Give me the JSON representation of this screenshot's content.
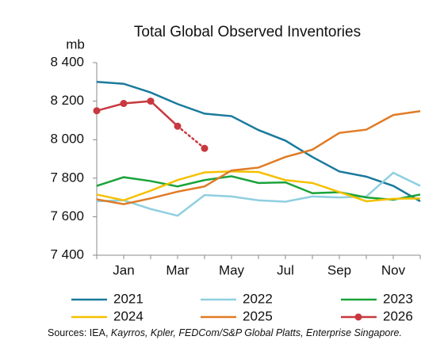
{
  "chart_data": {
    "type": "line",
    "title": "Total Global Observed Inventories",
    "y_label": "mb",
    "categories": [
      null,
      "Jan",
      null,
      "Mar",
      null,
      "May",
      null,
      "Jul",
      null,
      "Sep",
      null,
      "Nov",
      null
    ],
    "ylim": [
      7400,
      8400
    ],
    "yticks": [
      {
        "value": 7400,
        "label": "7 400"
      },
      {
        "value": 7600,
        "label": "7 600"
      },
      {
        "value": 7800,
        "label": "7 800"
      },
      {
        "value": 8000,
        "label": "8 000"
      },
      {
        "value": 8200,
        "label": "8 200"
      },
      {
        "value": 8400,
        "label": "8 400"
      }
    ],
    "grid": false,
    "series": [
      {
        "name": "2021",
        "color": "#1a7a9c",
        "values": [
          8300,
          8290,
          8245,
          8185,
          8135,
          8122,
          8050,
          7995,
          7910,
          7835,
          7808,
          7760,
          7680
        ]
      },
      {
        "name": "2022",
        "color": "#8ecfe0",
        "values": [
          7680,
          7685,
          7640,
          7605,
          7712,
          7705,
          7685,
          7678,
          7705,
          7700,
          7705,
          7828,
          7760
        ]
      },
      {
        "name": "2023",
        "color": "#1aa33a",
        "values": [
          7760,
          7805,
          7785,
          7757,
          7790,
          7810,
          7775,
          7778,
          7722,
          7727,
          7700,
          7688,
          7715
        ]
      },
      {
        "name": "2024",
        "color": "#f5c000",
        "values": [
          7715,
          7685,
          7735,
          7790,
          7830,
          7835,
          7832,
          7790,
          7775,
          7728,
          7680,
          7693,
          7695
        ]
      },
      {
        "name": "2025",
        "color": "#e07b24",
        "values": [
          7690,
          7665,
          7695,
          7730,
          7757,
          7840,
          7855,
          7910,
          7948,
          8035,
          8052,
          8128,
          8148
        ]
      },
      {
        "name": "2026",
        "color": "#c8383f",
        "markers": true,
        "dotted_last_segment": true,
        "values": [
          8150,
          8188,
          8200,
          8070,
          7955,
          null,
          null,
          null,
          null,
          null,
          null,
          null,
          null
        ]
      }
    ],
    "sources": {
      "plain": "Sources: IEA, ",
      "italic": "Kayrros, Kpler, FEDCom/S&P Global Platts, Enterprise Singapore."
    }
  }
}
